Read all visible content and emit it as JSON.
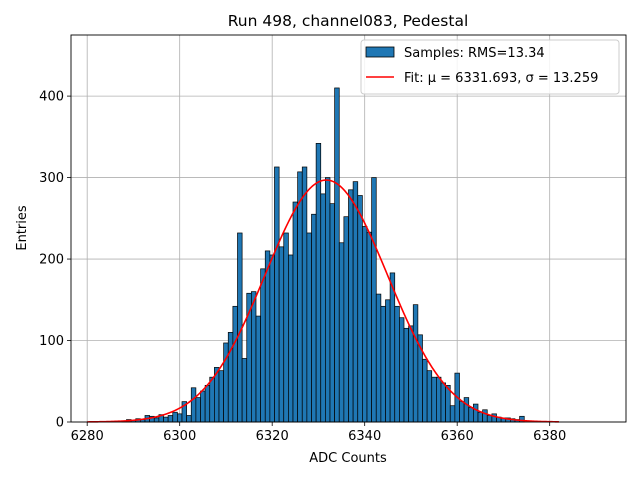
{
  "chart_data": {
    "type": "bar",
    "title": "Run 498, channel083, Pedestal",
    "xlabel": "ADC Counts",
    "ylabel": "Entries",
    "xlim": [
      6276.5,
      6396.5
    ],
    "ylim": [
      0,
      475
    ],
    "xticks": [
      6280,
      6300,
      6320,
      6340,
      6360,
      6380
    ],
    "yticks": [
      0,
      100,
      200,
      300,
      400
    ],
    "grid": true,
    "legend_position": "top-right",
    "bin_width": 1,
    "bins": [
      6288,
      6289,
      6290,
      6291,
      6292,
      6293,
      6294,
      6295,
      6296,
      6297,
      6298,
      6299,
      6300,
      6301,
      6302,
      6303,
      6304,
      6305,
      6306,
      6307,
      6308,
      6309,
      6310,
      6311,
      6312,
      6313,
      6314,
      6315,
      6316,
      6317,
      6318,
      6319,
      6320,
      6321,
      6322,
      6323,
      6324,
      6325,
      6326,
      6327,
      6328,
      6329,
      6330,
      6331,
      6332,
      6333,
      6334,
      6335,
      6336,
      6337,
      6338,
      6339,
      6340,
      6341,
      6342,
      6343,
      6344,
      6345,
      6346,
      6347,
      6348,
      6349,
      6350,
      6351,
      6352,
      6353,
      6354,
      6355,
      6356,
      6357,
      6358,
      6359,
      6360,
      6361,
      6362,
      6363,
      6364,
      6365,
      6366,
      6367,
      6368,
      6369,
      6370,
      6371,
      6372,
      6373,
      6374
    ],
    "counts": [
      1,
      3,
      2,
      4,
      3,
      8,
      7,
      5,
      9,
      6,
      8,
      12,
      10,
      25,
      8,
      42,
      30,
      38,
      45,
      55,
      67,
      63,
      97,
      110,
      142,
      232,
      78,
      158,
      160,
      130,
      188,
      210,
      205,
      313,
      215,
      232,
      205,
      270,
      307,
      313,
      232,
      255,
      342,
      280,
      300,
      268,
      410,
      220,
      252,
      285,
      295,
      278,
      240,
      233,
      300,
      157,
      142,
      150,
      183,
      142,
      128,
      115,
      118,
      144,
      107,
      77,
      63,
      55,
      55,
      48,
      45,
      20,
      60,
      25,
      30,
      18,
      22,
      12,
      15,
      8,
      10,
      6,
      5,
      5,
      4,
      3,
      7
    ],
    "series": [
      {
        "name": "Samples: RMS=13.34",
        "kind": "histogram",
        "color": "#1f77b4"
      },
      {
        "name": "Fit: μ = 6331.693, σ = 13.259",
        "kind": "gaussian-fit",
        "color": "#ff0000",
        "mu": 6331.693,
        "sigma": 13.259,
        "amplitude": 297,
        "x_range": [
          6280,
          6382
        ]
      }
    ]
  }
}
